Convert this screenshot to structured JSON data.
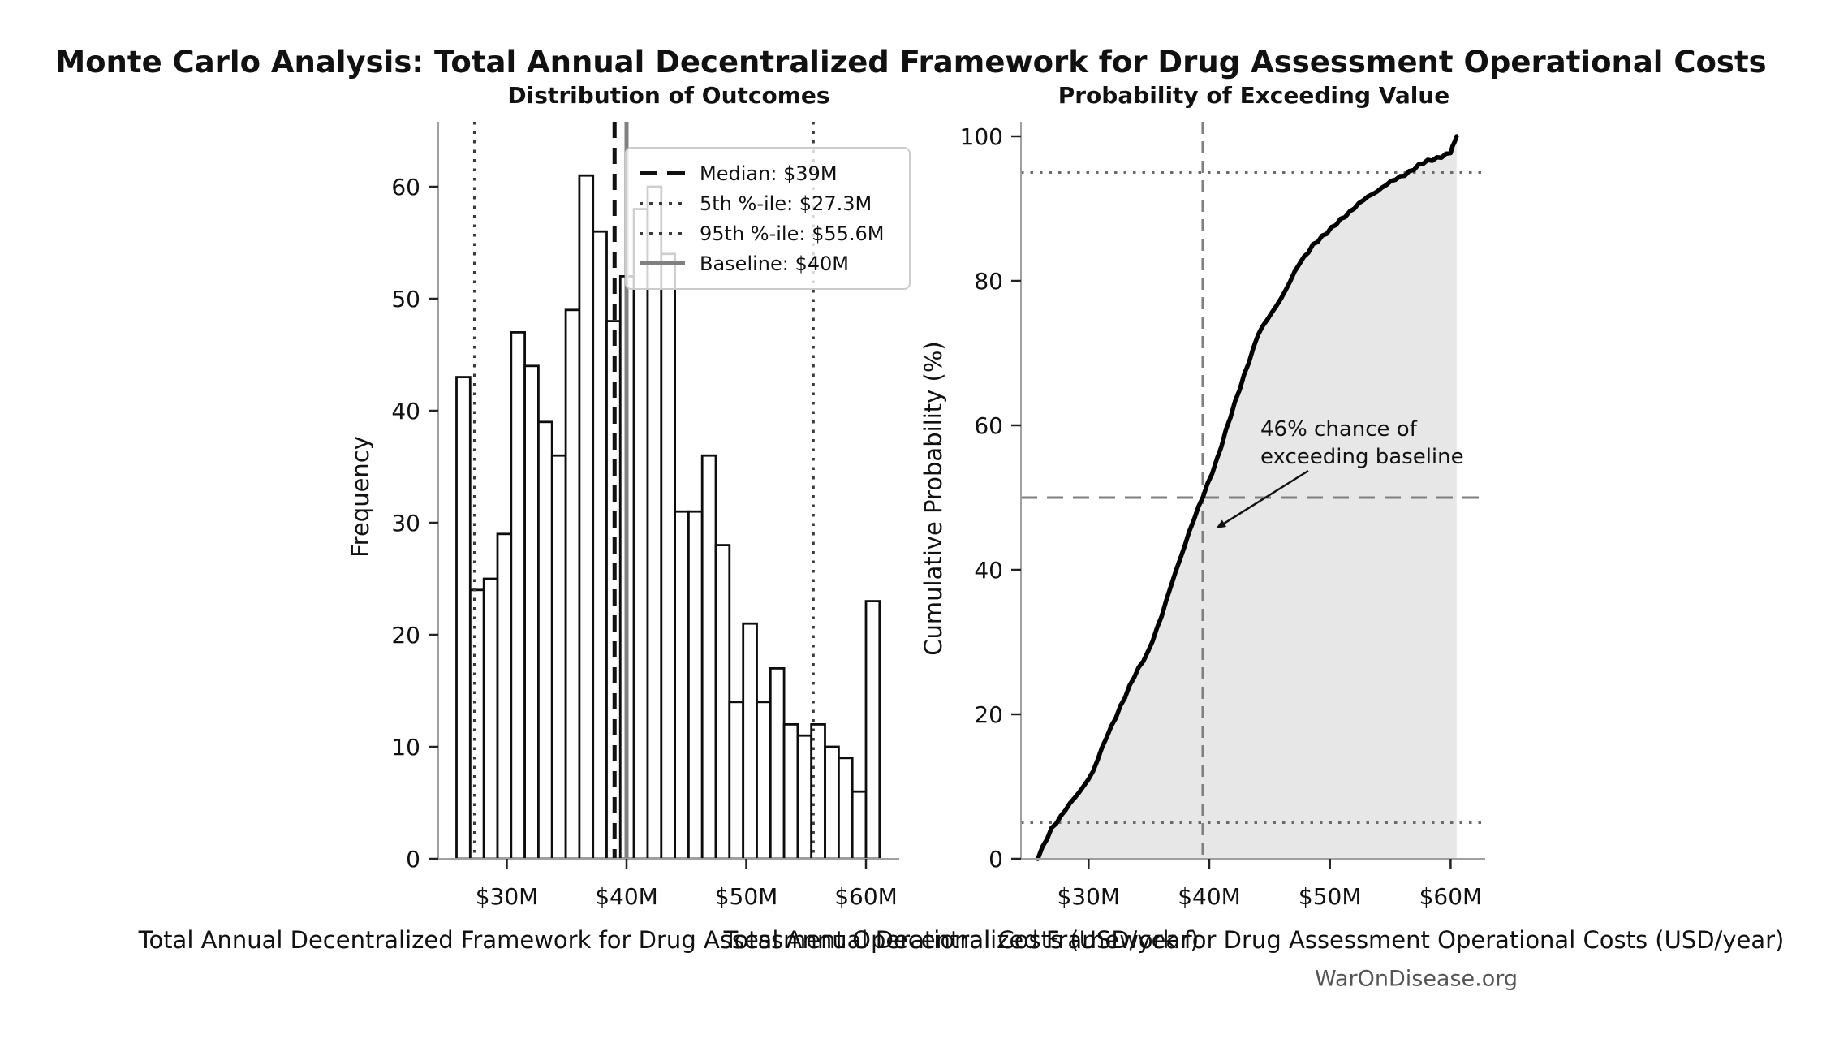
{
  "figure": {
    "title": "Monte Carlo Analysis: Total Annual Decentralized Framework for Drug Assessment Operational Costs",
    "watermark": "WarOnDisease.org",
    "background_color": "#ffffff",
    "n_simulations": 1000
  },
  "chart_data": [
    {
      "type": "bar",
      "subtype": "histogram",
      "title": "Distribution of Outcomes",
      "xlabel": "Total Annual Decentralized Framework for Drug Assessment Operational Costs (USD/year)",
      "ylabel": "Frequency",
      "bin_start_musd": 25.8,
      "bin_width_musd": 1.14,
      "counts": [
        43,
        24,
        25,
        29,
        47,
        44,
        39,
        36,
        49,
        61,
        56,
        48,
        52,
        58,
        60,
        54,
        31,
        31,
        36,
        28,
        14,
        21,
        14,
        17,
        12,
        11,
        12,
        10,
        9,
        6,
        23
      ],
      "bar_fill": "#ffffff",
      "bar_edge": "#0d0d0d",
      "xticks": [
        {
          "value": 30,
          "label": "$30M"
        },
        {
          "value": 40,
          "label": "$40M"
        },
        {
          "value": 50,
          "label": "$50M"
        },
        {
          "value": 60,
          "label": "$60M"
        }
      ],
      "yticks": [
        0,
        10,
        20,
        30,
        40,
        50,
        60
      ],
      "xlim_musd": [
        24.3,
        62.8
      ],
      "ylim": [
        0,
        65.8
      ],
      "grid": false,
      "legend_position": "upper-right",
      "reference_lines": [
        {
          "label": "Median: $39M",
          "value_musd": 39,
          "style": "dashed",
          "color": "#111111"
        },
        {
          "label": "5th %-ile: $27.3M",
          "value_musd": 27.3,
          "style": "dotted",
          "color": "#3a3a3a"
        },
        {
          "label": "95th %-ile: $55.6M",
          "value_musd": 55.6,
          "style": "dotted",
          "color": "#3a3a3a"
        },
        {
          "label": "Baseline: $40M",
          "value_musd": 40,
          "style": "solid",
          "color": "#808080"
        }
      ]
    },
    {
      "type": "area",
      "subtype": "empirical-cdf",
      "title": "Probability of Exceeding Value",
      "xlabel": "Total Annual Decentralized Framework for Drug Assessment Operational Costs (USD/year)",
      "ylabel": "Cumulative Probability (%)",
      "x_musd": [
        25.8,
        26.94,
        28.08,
        29.22,
        30.36,
        31.5,
        32.64,
        33.78,
        34.92,
        36.06,
        37.2,
        38.34,
        39.48,
        40.62,
        41.76,
        42.9,
        44.04,
        45.18,
        46.32,
        47.46,
        48.6,
        49.74,
        50.88,
        52.02,
        53.16,
        54.3,
        55.44,
        56.58,
        57.72,
        58.86,
        60.0,
        60.5
      ],
      "cum_pct": [
        0,
        4.3,
        6.7,
        9.2,
        12.1,
        16.8,
        21.2,
        25.1,
        28.7,
        33.6,
        39.7,
        45.3,
        50.1,
        55.3,
        61.1,
        67.1,
        72.5,
        75.6,
        78.7,
        82.3,
        85.1,
        86.5,
        88.6,
        90.0,
        91.7,
        92.9,
        94.0,
        95.2,
        96.2,
        97.1,
        97.7,
        100
      ],
      "line_color": "#000000",
      "fill_color": "#e7e7e7",
      "xticks": [
        {
          "value": 30,
          "label": "$30M"
        },
        {
          "value": 40,
          "label": "$40M"
        },
        {
          "value": 50,
          "label": "$50M"
        },
        {
          "value": 60,
          "label": "$60M"
        }
      ],
      "yticks": [
        0,
        20,
        40,
        60,
        80,
        100
      ],
      "xlim_musd": [
        24.4,
        62.9
      ],
      "ylim": [
        0,
        102
      ],
      "grid": false,
      "hlines": [
        {
          "pct": 50,
          "style": "dashed",
          "color": "#7f7f7f"
        },
        {
          "pct": 5,
          "style": "dotted",
          "color": "#6a6a6a"
        },
        {
          "pct": 95,
          "style": "dotted",
          "color": "#6a6a6a"
        }
      ],
      "vlines": [
        {
          "x_musd": 39.46,
          "style": "dashed",
          "color": "#7f7f7f"
        }
      ],
      "annotation": {
        "lines": [
          "46% chance of",
          "exceeding baseline"
        ],
        "exceed_pct": 46
      }
    }
  ]
}
